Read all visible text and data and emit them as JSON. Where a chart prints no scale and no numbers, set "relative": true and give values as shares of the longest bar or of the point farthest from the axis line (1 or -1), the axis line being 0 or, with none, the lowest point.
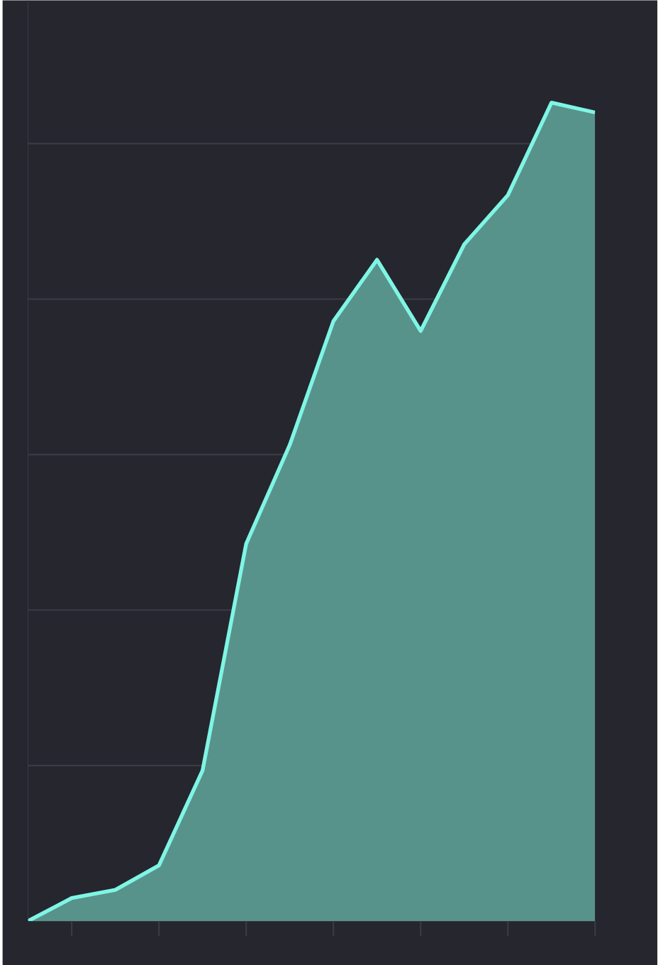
{
  "chart_data": {
    "type": "area",
    "relative": true,
    "categories": [
      null,
      null,
      null,
      null,
      null,
      null,
      null,
      null,
      null,
      null,
      null,
      null,
      null,
      null
    ],
    "series": [
      {
        "color": "#7ff5e5",
        "values": [
          0,
          0.028,
          0.038,
          0.068,
          0.184,
          0.461,
          0.582,
          0.733,
          0.808,
          0.721,
          0.827,
          0.887,
          1,
          0.988
        ]
      }
    ],
    "grid": "y"
  }
}
